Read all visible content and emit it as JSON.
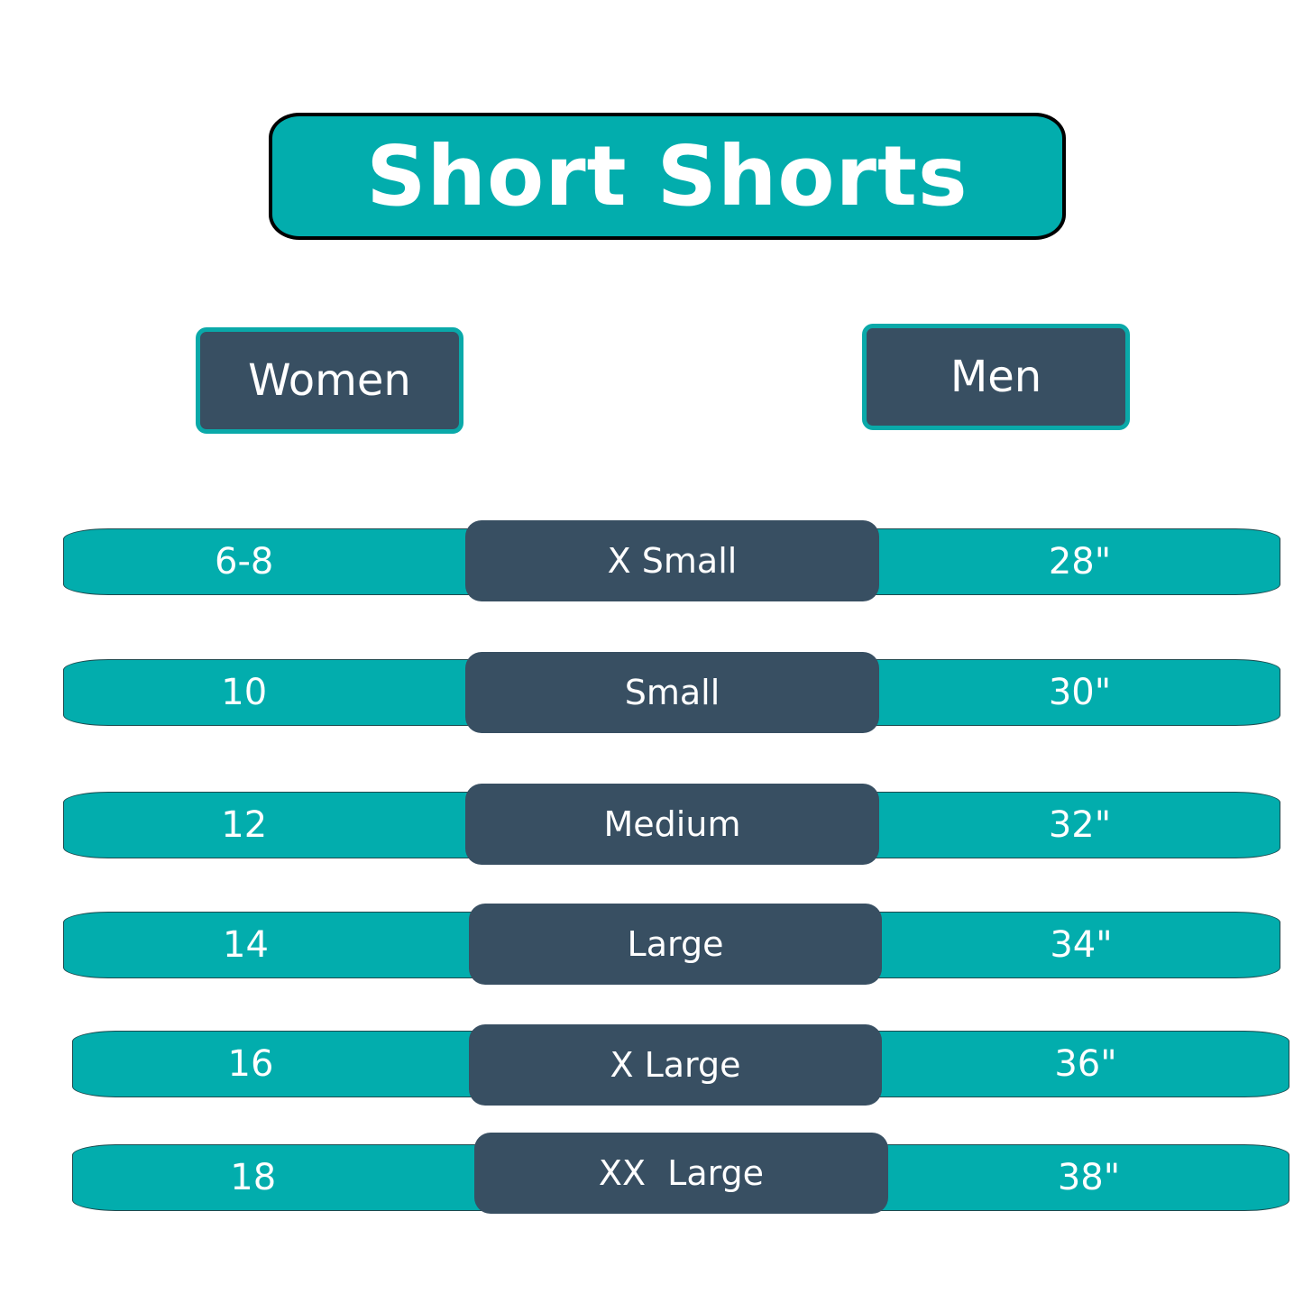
{
  "title": "Short Shorts",
  "headers": {
    "women": "Women",
    "men": "Men"
  },
  "colors": {
    "teal": "#02adad",
    "slate": "#384f62",
    "title_border": "#000000"
  },
  "rows": [
    {
      "women": "6-8",
      "size": "X Small",
      "men": "28\""
    },
    {
      "women": "10",
      "size": "Small",
      "men": "30\""
    },
    {
      "women": "12",
      "size": "Medium",
      "men": "32\""
    },
    {
      "women": "14",
      "size": "Large",
      "men": "34\""
    },
    {
      "women": "16",
      "size": "X Large",
      "men": "36\""
    },
    {
      "women": "18",
      "size": "XX  Large",
      "men": "38\""
    }
  ]
}
